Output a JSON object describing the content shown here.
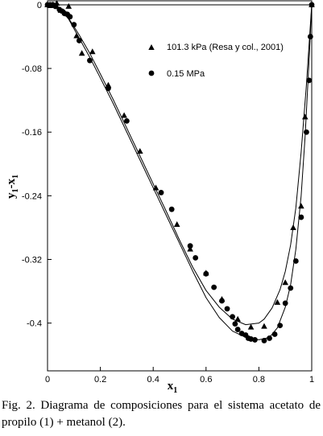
{
  "caption": "Fig.  2.  Diagrama de composiciones para el sistema acetato de propilo (1) + metanol (2).",
  "chart_data": {
    "type": "scatter",
    "title": "",
    "xlabel": "x",
    "xlabel_sub": "1",
    "ylabel": "y",
    "ylabel_sub": "1",
    "ylabel_mid": "-x",
    "ylabel_sub2": "1",
    "xlim": [
      0,
      1
    ],
    "ylim": [
      -0.46,
      0.005
    ],
    "xticks": [
      {
        "v": 0,
        "label": "0"
      },
      {
        "v": 0.2,
        "label": "0.2"
      },
      {
        "v": 0.4,
        "label": "0.4"
      },
      {
        "v": 0.6,
        "label": "0.6"
      },
      {
        "v": 0.8,
        "label": "0.8"
      },
      {
        "v": 1,
        "label": "1"
      }
    ],
    "yticks": [
      {
        "v": 0,
        "label": "0"
      },
      {
        "v": -0.08,
        "label": "-0.08"
      },
      {
        "v": -0.16,
        "label": "-0.16"
      },
      {
        "v": -0.24,
        "label": "-0.24"
      },
      {
        "v": -0.32,
        "label": "-0.32"
      },
      {
        "v": -0.4,
        "label": "-0.4"
      }
    ],
    "grid": false,
    "legend_position": "top-right",
    "zero_line": true,
    "series": [
      {
        "name": "101.3 kPa (Resa y col., 2001)",
        "marker": "triangle",
        "x": [
          0.0,
          0.01,
          0.02,
          0.035,
          0.05,
          0.065,
          0.08,
          0.11,
          0.13,
          0.17,
          0.23,
          0.29,
          0.35,
          0.41,
          0.49,
          0.54,
          0.6,
          0.66,
          0.72,
          0.77,
          0.82,
          0.87,
          0.9,
          0.93,
          0.96,
          0.975,
          1.0
        ],
        "y": [
          0.0,
          -0.001,
          0.0,
          0.002,
          -0.007,
          -0.01,
          -0.002,
          -0.039,
          -0.061,
          -0.059,
          -0.101,
          -0.139,
          -0.184,
          -0.23,
          -0.276,
          -0.307,
          -0.337,
          -0.37,
          -0.395,
          -0.405,
          -0.404,
          -0.374,
          -0.349,
          -0.28,
          -0.253,
          -0.141,
          0.0
        ]
      },
      {
        "name": "0.15 MPa",
        "marker": "circle",
        "x": [
          0.0,
          0.01,
          0.02,
          0.03,
          0.045,
          0.055,
          0.065,
          0.075,
          0.085,
          0.1,
          0.12,
          0.16,
          0.23,
          0.3,
          0.43,
          0.47,
          0.54,
          0.56,
          0.6,
          0.63,
          0.66,
          0.68,
          0.7,
          0.71,
          0.72,
          0.735,
          0.75,
          0.76,
          0.77,
          0.785,
          0.82,
          0.84,
          0.86,
          0.88,
          0.9,
          0.92,
          0.94,
          0.96,
          0.98,
          0.99,
          0.995,
          1.0
        ],
        "y": [
          0.0,
          0.0,
          0.0,
          -0.002,
          -0.006,
          -0.008,
          -0.011,
          -0.012,
          -0.015,
          -0.025,
          -0.045,
          -0.07,
          -0.105,
          -0.146,
          -0.236,
          -0.257,
          -0.303,
          -0.318,
          -0.338,
          -0.355,
          -0.372,
          -0.382,
          -0.392,
          -0.401,
          -0.408,
          -0.413,
          -0.415,
          -0.419,
          -0.42,
          -0.421,
          -0.422,
          -0.419,
          -0.414,
          -0.403,
          -0.375,
          -0.356,
          -0.322,
          -0.267,
          -0.16,
          -0.095,
          -0.04,
          0.0
        ]
      }
    ],
    "fitted_curves": [
      {
        "for": "101.3 kPa (Resa y col., 2001)",
        "x": [
          0.0,
          0.02,
          0.05,
          0.08,
          0.12,
          0.16,
          0.2,
          0.25,
          0.3,
          0.35,
          0.4,
          0.45,
          0.5,
          0.55,
          0.6,
          0.65,
          0.7,
          0.75,
          0.8,
          0.82,
          0.85,
          0.88,
          0.9,
          0.92,
          0.94,
          0.96,
          0.98,
          0.99,
          1.0
        ],
        "y": [
          0.0,
          0.001,
          -0.004,
          -0.017,
          -0.038,
          -0.061,
          -0.087,
          -0.12,
          -0.155,
          -0.19,
          -0.225,
          -0.26,
          -0.296,
          -0.33,
          -0.359,
          -0.38,
          -0.395,
          -0.402,
          -0.4,
          -0.395,
          -0.381,
          -0.358,
          -0.335,
          -0.302,
          -0.255,
          -0.185,
          -0.1,
          -0.05,
          0.0
        ]
      },
      {
        "for": "0.15 MPa",
        "x": [
          0.0,
          0.02,
          0.05,
          0.08,
          0.12,
          0.16,
          0.2,
          0.25,
          0.3,
          0.35,
          0.4,
          0.45,
          0.5,
          0.55,
          0.6,
          0.65,
          0.7,
          0.75,
          0.8,
          0.84,
          0.87,
          0.9,
          0.92,
          0.94,
          0.96,
          0.975,
          0.99,
          0.997,
          1.0
        ],
        "y": [
          0.0,
          0.0,
          -0.006,
          -0.018,
          -0.042,
          -0.066,
          -0.092,
          -0.125,
          -0.16,
          -0.195,
          -0.23,
          -0.265,
          -0.3,
          -0.335,
          -0.368,
          -0.393,
          -0.41,
          -0.418,
          -0.421,
          -0.418,
          -0.406,
          -0.38,
          -0.352,
          -0.307,
          -0.24,
          -0.165,
          -0.07,
          -0.02,
          0.0
        ]
      }
    ]
  }
}
